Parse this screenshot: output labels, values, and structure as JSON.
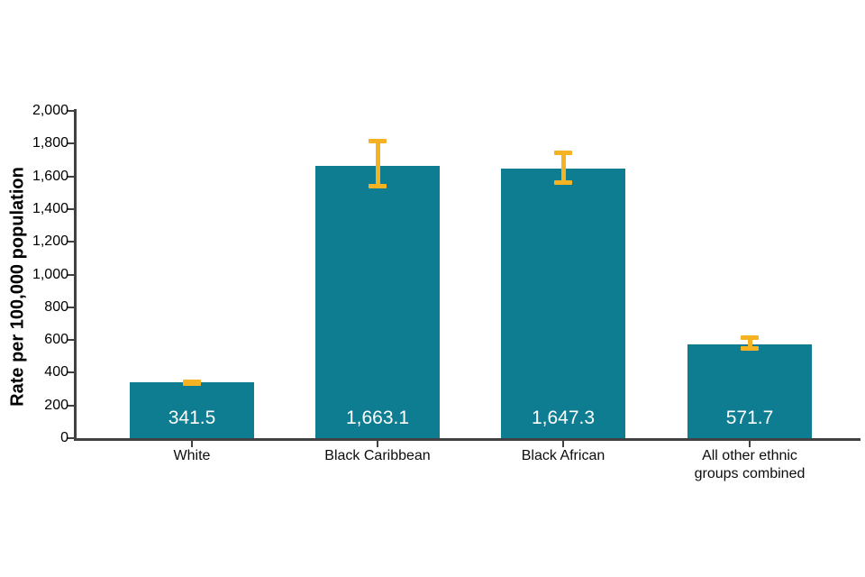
{
  "figure": {
    "background": "#ffffff"
  },
  "chart_data": {
    "type": "bar",
    "title": "",
    "ylabel": "Rate per 100,000 population",
    "xlabel": "",
    "categories": [
      "White",
      "Black Caribbean",
      "Black African",
      "All other ethnic groups combined"
    ],
    "category_label_lines": [
      [
        "White"
      ],
      [
        "Black Caribbean"
      ],
      [
        "Black African"
      ],
      [
        "All other ethnic",
        "groups combined"
      ]
    ],
    "values": [
      341.5,
      1663.1,
      1647.3,
      571.7
    ],
    "value_labels": [
      "341.5",
      "1,663.1",
      "1,647.3",
      "571.7"
    ],
    "error_bars": {
      "ci_low_estimate": [
        336,
        1540,
        1560,
        550
      ],
      "ci_high_estimate": [
        347,
        1815,
        1745,
        612
      ]
    },
    "ylim": [
      0,
      2000
    ],
    "ytick_step": 200,
    "ytick_labels": [
      "0",
      "200",
      "400",
      "600",
      "800",
      "1,000",
      "1,200",
      "1,400",
      "1,600",
      "1,800",
      "2,000"
    ],
    "grid": false,
    "legend": false,
    "colors": {
      "bar": "#0e7c91",
      "error_bar": "#f5b324",
      "axis": "#414042",
      "tick_text": "#000000",
      "value_label_text": "#ffffff"
    }
  }
}
